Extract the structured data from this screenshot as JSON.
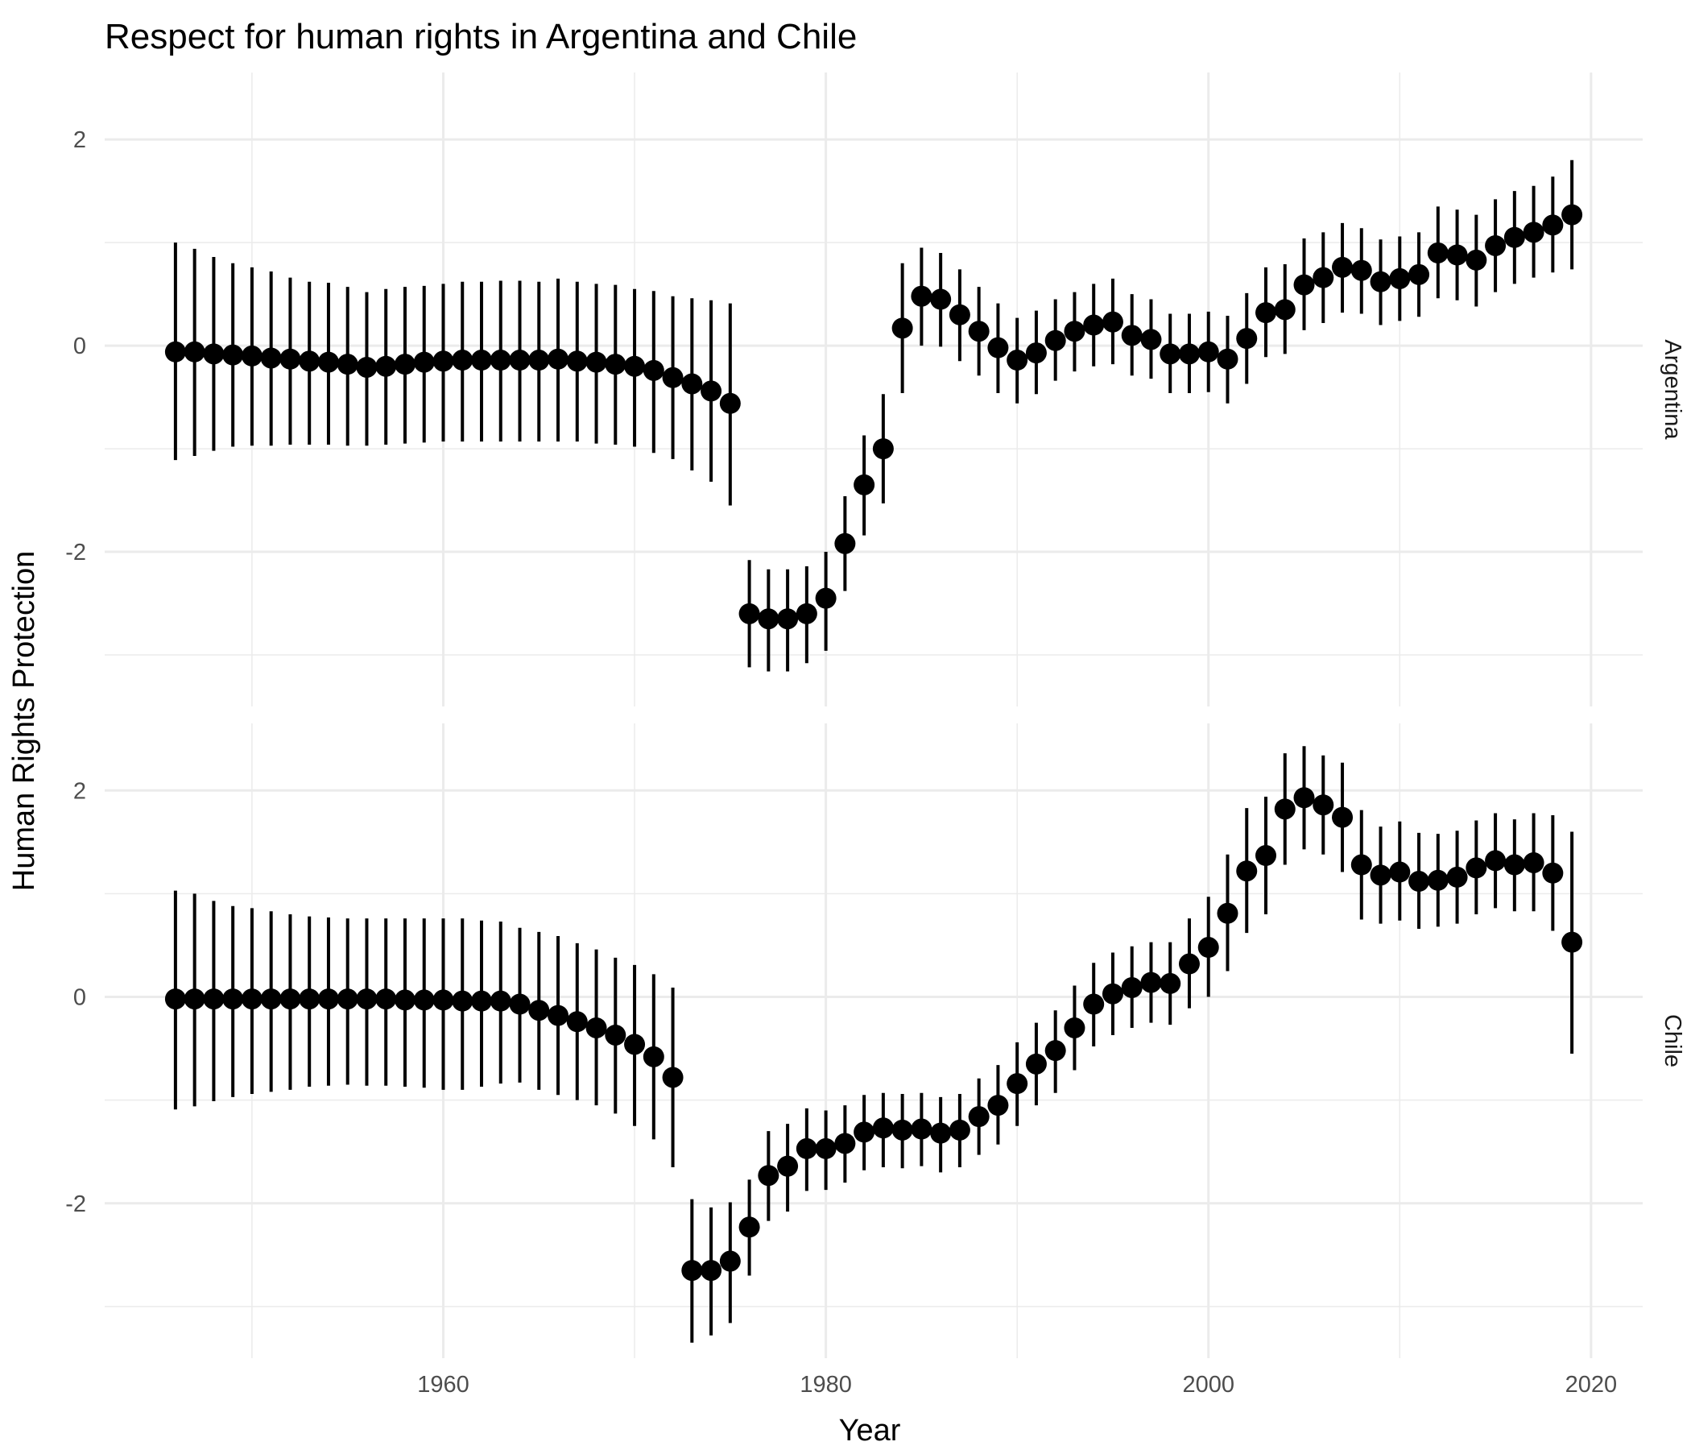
{
  "chart_data": {
    "type": "scatter",
    "title": "Respect for human rights in Argentina and Chile",
    "xlabel": "Year",
    "ylabel": "Human Rights Protection",
    "xlim": [
      1942.3,
      2022.7
    ],
    "ylim": [
      -3.5,
      2.65
    ],
    "x_ticks": [
      1960,
      1980,
      2000,
      2020
    ],
    "y_ticks": [
      -2,
      0,
      2
    ],
    "grid": true,
    "facets": [
      {
        "name": "Argentina",
        "points": [
          {
            "x": 1946,
            "y": -0.06,
            "lo": -1.11,
            "hi": 1.0
          },
          {
            "x": 1947,
            "y": -0.06,
            "lo": -1.07,
            "hi": 0.94
          },
          {
            "x": 1948,
            "y": -0.08,
            "lo": -1.02,
            "hi": 0.86
          },
          {
            "x": 1949,
            "y": -0.09,
            "lo": -0.98,
            "hi": 0.8
          },
          {
            "x": 1950,
            "y": -0.1,
            "lo": -0.97,
            "hi": 0.76
          },
          {
            "x": 1951,
            "y": -0.12,
            "lo": -0.97,
            "hi": 0.72
          },
          {
            "x": 1952,
            "y": -0.13,
            "lo": -0.96,
            "hi": 0.66
          },
          {
            "x": 1953,
            "y": -0.15,
            "lo": -0.96,
            "hi": 0.62
          },
          {
            "x": 1954,
            "y": -0.16,
            "lo": -0.96,
            "hi": 0.61
          },
          {
            "x": 1955,
            "y": -0.18,
            "lo": -0.97,
            "hi": 0.57
          },
          {
            "x": 1956,
            "y": -0.21,
            "lo": -0.97,
            "hi": 0.52
          },
          {
            "x": 1957,
            "y": -0.2,
            "lo": -0.96,
            "hi": 0.55
          },
          {
            "x": 1958,
            "y": -0.18,
            "lo": -0.95,
            "hi": 0.57
          },
          {
            "x": 1959,
            "y": -0.16,
            "lo": -0.94,
            "hi": 0.58
          },
          {
            "x": 1960,
            "y": -0.15,
            "lo": -0.93,
            "hi": 0.6
          },
          {
            "x": 1961,
            "y": -0.14,
            "lo": -0.93,
            "hi": 0.62
          },
          {
            "x": 1962,
            "y": -0.14,
            "lo": -0.93,
            "hi": 0.62
          },
          {
            "x": 1963,
            "y": -0.14,
            "lo": -0.93,
            "hi": 0.63
          },
          {
            "x": 1964,
            "y": -0.14,
            "lo": -0.93,
            "hi": 0.63
          },
          {
            "x": 1965,
            "y": -0.14,
            "lo": -0.93,
            "hi": 0.62
          },
          {
            "x": 1966,
            "y": -0.13,
            "lo": -0.93,
            "hi": 0.65
          },
          {
            "x": 1967,
            "y": -0.15,
            "lo": -0.93,
            "hi": 0.62
          },
          {
            "x": 1968,
            "y": -0.16,
            "lo": -0.95,
            "hi": 0.6
          },
          {
            "x": 1969,
            "y": -0.18,
            "lo": -0.96,
            "hi": 0.59
          },
          {
            "x": 1970,
            "y": -0.2,
            "lo": -0.98,
            "hi": 0.55
          },
          {
            "x": 1971,
            "y": -0.24,
            "lo": -1.04,
            "hi": 0.53
          },
          {
            "x": 1972,
            "y": -0.31,
            "lo": -1.1,
            "hi": 0.48
          },
          {
            "x": 1973,
            "y": -0.37,
            "lo": -1.21,
            "hi": 0.46
          },
          {
            "x": 1974,
            "y": -0.44,
            "lo": -1.32,
            "hi": 0.44
          },
          {
            "x": 1975,
            "y": -0.56,
            "lo": -1.55,
            "hi": 0.41
          },
          {
            "x": 1976,
            "y": -2.6,
            "lo": -3.12,
            "hi": -2.08
          },
          {
            "x": 1977,
            "y": -2.65,
            "lo": -3.16,
            "hi": -2.17
          },
          {
            "x": 1978,
            "y": -2.65,
            "lo": -3.16,
            "hi": -2.17
          },
          {
            "x": 1979,
            "y": -2.6,
            "lo": -3.08,
            "hi": -2.14
          },
          {
            "x": 1980,
            "y": -2.45,
            "lo": -2.96,
            "hi": -2.0
          },
          {
            "x": 1981,
            "y": -1.92,
            "lo": -2.38,
            "hi": -1.46
          },
          {
            "x": 1982,
            "y": -1.35,
            "lo": -1.84,
            "hi": -0.87
          },
          {
            "x": 1983,
            "y": -1.0,
            "lo": -1.53,
            "hi": -0.47
          },
          {
            "x": 1984,
            "y": 0.17,
            "lo": -0.46,
            "hi": 0.8
          },
          {
            "x": 1985,
            "y": 0.48,
            "lo": 0.0,
            "hi": 0.95
          },
          {
            "x": 1986,
            "y": 0.45,
            "lo": -0.01,
            "hi": 0.9
          },
          {
            "x": 1987,
            "y": 0.3,
            "lo": -0.15,
            "hi": 0.74
          },
          {
            "x": 1988,
            "y": 0.14,
            "lo": -0.29,
            "hi": 0.57
          },
          {
            "x": 1989,
            "y": -0.02,
            "lo": -0.46,
            "hi": 0.41
          },
          {
            "x": 1990,
            "y": -0.14,
            "lo": -0.56,
            "hi": 0.27
          },
          {
            "x": 1991,
            "y": -0.07,
            "lo": -0.47,
            "hi": 0.34
          },
          {
            "x": 1992,
            "y": 0.05,
            "lo": -0.34,
            "hi": 0.45
          },
          {
            "x": 1993,
            "y": 0.14,
            "lo": -0.25,
            "hi": 0.52
          },
          {
            "x": 1994,
            "y": 0.2,
            "lo": -0.2,
            "hi": 0.6
          },
          {
            "x": 1995,
            "y": 0.23,
            "lo": -0.18,
            "hi": 0.65
          },
          {
            "x": 1996,
            "y": 0.1,
            "lo": -0.29,
            "hi": 0.5
          },
          {
            "x": 1997,
            "y": 0.06,
            "lo": -0.32,
            "hi": 0.45
          },
          {
            "x": 1998,
            "y": -0.08,
            "lo": -0.46,
            "hi": 0.31
          },
          {
            "x": 1999,
            "y": -0.08,
            "lo": -0.46,
            "hi": 0.31
          },
          {
            "x": 2000,
            "y": -0.06,
            "lo": -0.45,
            "hi": 0.33
          },
          {
            "x": 2001,
            "y": -0.13,
            "lo": -0.56,
            "hi": 0.29
          },
          {
            "x": 2002,
            "y": 0.07,
            "lo": -0.37,
            "hi": 0.51
          },
          {
            "x": 2003,
            "y": 0.32,
            "lo": -0.11,
            "hi": 0.76
          },
          {
            "x": 2004,
            "y": 0.35,
            "lo": -0.08,
            "hi": 0.79
          },
          {
            "x": 2005,
            "y": 0.59,
            "lo": 0.15,
            "hi": 1.04
          },
          {
            "x": 2006,
            "y": 0.66,
            "lo": 0.22,
            "hi": 1.1
          },
          {
            "x": 2007,
            "y": 0.76,
            "lo": 0.32,
            "hi": 1.19
          },
          {
            "x": 2008,
            "y": 0.73,
            "lo": 0.31,
            "hi": 1.14
          },
          {
            "x": 2009,
            "y": 0.62,
            "lo": 0.2,
            "hi": 1.03
          },
          {
            "x": 2010,
            "y": 0.65,
            "lo": 0.24,
            "hi": 1.06
          },
          {
            "x": 2011,
            "y": 0.69,
            "lo": 0.28,
            "hi": 1.1
          },
          {
            "x": 2012,
            "y": 0.9,
            "lo": 0.46,
            "hi": 1.35
          },
          {
            "x": 2013,
            "y": 0.88,
            "lo": 0.44,
            "hi": 1.32
          },
          {
            "x": 2014,
            "y": 0.83,
            "lo": 0.38,
            "hi": 1.27
          },
          {
            "x": 2015,
            "y": 0.97,
            "lo": 0.52,
            "hi": 1.42
          },
          {
            "x": 2016,
            "y": 1.05,
            "lo": 0.6,
            "hi": 1.5
          },
          {
            "x": 2017,
            "y": 1.1,
            "lo": 0.66,
            "hi": 1.55
          },
          {
            "x": 2018,
            "y": 1.17,
            "lo": 0.71,
            "hi": 1.64
          },
          {
            "x": 2019,
            "y": 1.27,
            "lo": 0.74,
            "hi": 1.8
          }
        ]
      },
      {
        "name": "Chile",
        "points": [
          {
            "x": 1946,
            "y": -0.02,
            "lo": -1.09,
            "hi": 1.03
          },
          {
            "x": 1947,
            "y": -0.02,
            "lo": -1.06,
            "hi": 1.0
          },
          {
            "x": 1948,
            "y": -0.02,
            "lo": -1.01,
            "hi": 0.93
          },
          {
            "x": 1949,
            "y": -0.02,
            "lo": -0.97,
            "hi": 0.88
          },
          {
            "x": 1950,
            "y": -0.02,
            "lo": -0.94,
            "hi": 0.86
          },
          {
            "x": 1951,
            "y": -0.02,
            "lo": -0.92,
            "hi": 0.83
          },
          {
            "x": 1952,
            "y": -0.02,
            "lo": -0.9,
            "hi": 0.8
          },
          {
            "x": 1953,
            "y": -0.02,
            "lo": -0.87,
            "hi": 0.78
          },
          {
            "x": 1954,
            "y": -0.02,
            "lo": -0.86,
            "hi": 0.77
          },
          {
            "x": 1955,
            "y": -0.02,
            "lo": -0.85,
            "hi": 0.76
          },
          {
            "x": 1956,
            "y": -0.02,
            "lo": -0.86,
            "hi": 0.76
          },
          {
            "x": 1957,
            "y": -0.02,
            "lo": -0.86,
            "hi": 0.76
          },
          {
            "x": 1958,
            "y": -0.03,
            "lo": -0.87,
            "hi": 0.76
          },
          {
            "x": 1959,
            "y": -0.03,
            "lo": -0.88,
            "hi": 0.76
          },
          {
            "x": 1960,
            "y": -0.03,
            "lo": -0.9,
            "hi": 0.76
          },
          {
            "x": 1961,
            "y": -0.04,
            "lo": -0.9,
            "hi": 0.76
          },
          {
            "x": 1962,
            "y": -0.04,
            "lo": -0.87,
            "hi": 0.74
          },
          {
            "x": 1963,
            "y": -0.04,
            "lo": -0.84,
            "hi": 0.73
          },
          {
            "x": 1964,
            "y": -0.07,
            "lo": -0.83,
            "hi": 0.67
          },
          {
            "x": 1965,
            "y": -0.13,
            "lo": -0.9,
            "hi": 0.63
          },
          {
            "x": 1966,
            "y": -0.18,
            "lo": -0.95,
            "hi": 0.59
          },
          {
            "x": 1967,
            "y": -0.24,
            "lo": -1.0,
            "hi": 0.52
          },
          {
            "x": 1968,
            "y": -0.3,
            "lo": -1.05,
            "hi": 0.46
          },
          {
            "x": 1969,
            "y": -0.37,
            "lo": -1.13,
            "hi": 0.38
          },
          {
            "x": 1970,
            "y": -0.46,
            "lo": -1.25,
            "hi": 0.31
          },
          {
            "x": 1971,
            "y": -0.58,
            "lo": -1.38,
            "hi": 0.22
          },
          {
            "x": 1972,
            "y": -0.78,
            "lo": -1.65,
            "hi": 0.09
          },
          {
            "x": 1973,
            "y": -2.65,
            "lo": -3.35,
            "hi": -1.96
          },
          {
            "x": 1974,
            "y": -2.65,
            "lo": -3.28,
            "hi": -2.04
          },
          {
            "x": 1975,
            "y": -2.56,
            "lo": -3.16,
            "hi": -1.99
          },
          {
            "x": 1976,
            "y": -2.23,
            "lo": -2.7,
            "hi": -1.77
          },
          {
            "x": 1977,
            "y": -1.73,
            "lo": -2.17,
            "hi": -1.3
          },
          {
            "x": 1978,
            "y": -1.64,
            "lo": -2.08,
            "hi": -1.23
          },
          {
            "x": 1979,
            "y": -1.47,
            "lo": -1.88,
            "hi": -1.08
          },
          {
            "x": 1980,
            "y": -1.47,
            "lo": -1.87,
            "hi": -1.1
          },
          {
            "x": 1981,
            "y": -1.42,
            "lo": -1.8,
            "hi": -1.05
          },
          {
            "x": 1982,
            "y": -1.31,
            "lo": -1.68,
            "hi": -0.95
          },
          {
            "x": 1983,
            "y": -1.27,
            "lo": -1.65,
            "hi": -0.93
          },
          {
            "x": 1984,
            "y": -1.29,
            "lo": -1.66,
            "hi": -0.94
          },
          {
            "x": 1985,
            "y": -1.28,
            "lo": -1.64,
            "hi": -0.93
          },
          {
            "x": 1986,
            "y": -1.32,
            "lo": -1.7,
            "hi": -0.97
          },
          {
            "x": 1987,
            "y": -1.29,
            "lo": -1.65,
            "hi": -0.94
          },
          {
            "x": 1988,
            "y": -1.16,
            "lo": -1.53,
            "hi": -0.79
          },
          {
            "x": 1989,
            "y": -1.05,
            "lo": -1.43,
            "hi": -0.66
          },
          {
            "x": 1990,
            "y": -0.84,
            "lo": -1.25,
            "hi": -0.44
          },
          {
            "x": 1991,
            "y": -0.65,
            "lo": -1.05,
            "hi": -0.25
          },
          {
            "x": 1992,
            "y": -0.52,
            "lo": -0.93,
            "hi": -0.13
          },
          {
            "x": 1993,
            "y": -0.3,
            "lo": -0.71,
            "hi": 0.11
          },
          {
            "x": 1994,
            "y": -0.07,
            "lo": -0.48,
            "hi": 0.33
          },
          {
            "x": 1995,
            "y": 0.03,
            "lo": -0.37,
            "hi": 0.43
          },
          {
            "x": 1996,
            "y": 0.09,
            "lo": -0.3,
            "hi": 0.49
          },
          {
            "x": 1997,
            "y": 0.14,
            "lo": -0.25,
            "hi": 0.53
          },
          {
            "x": 1998,
            "y": 0.13,
            "lo": -0.27,
            "hi": 0.53
          },
          {
            "x": 1999,
            "y": 0.32,
            "lo": -0.11,
            "hi": 0.76
          },
          {
            "x": 2000,
            "y": 0.48,
            "lo": 0.0,
            "hi": 0.97
          },
          {
            "x": 2001,
            "y": 0.81,
            "lo": 0.25,
            "hi": 1.38
          },
          {
            "x": 2002,
            "y": 1.22,
            "lo": 0.62,
            "hi": 1.83
          },
          {
            "x": 2003,
            "y": 1.37,
            "lo": 0.8,
            "hi": 1.94
          },
          {
            "x": 2004,
            "y": 1.82,
            "lo": 1.28,
            "hi": 2.36
          },
          {
            "x": 2005,
            "y": 1.93,
            "lo": 1.43,
            "hi": 2.43
          },
          {
            "x": 2006,
            "y": 1.86,
            "lo": 1.38,
            "hi": 2.34
          },
          {
            "x": 2007,
            "y": 1.74,
            "lo": 1.21,
            "hi": 2.27
          },
          {
            "x": 2008,
            "y": 1.28,
            "lo": 0.75,
            "hi": 1.81
          },
          {
            "x": 2009,
            "y": 1.18,
            "lo": 0.71,
            "hi": 1.65
          },
          {
            "x": 2010,
            "y": 1.21,
            "lo": 0.74,
            "hi": 1.7
          },
          {
            "x": 2011,
            "y": 1.12,
            "lo": 0.66,
            "hi": 1.59
          },
          {
            "x": 2012,
            "y": 1.13,
            "lo": 0.68,
            "hi": 1.58
          },
          {
            "x": 2013,
            "y": 1.16,
            "lo": 0.71,
            "hi": 1.61
          },
          {
            "x": 2014,
            "y": 1.25,
            "lo": 0.8,
            "hi": 1.71
          },
          {
            "x": 2015,
            "y": 1.32,
            "lo": 0.86,
            "hi": 1.78
          },
          {
            "x": 2016,
            "y": 1.28,
            "lo": 0.83,
            "hi": 1.72
          },
          {
            "x": 2017,
            "y": 1.3,
            "lo": 0.83,
            "hi": 1.78
          },
          {
            "x": 2018,
            "y": 1.2,
            "lo": 0.64,
            "hi": 1.76
          },
          {
            "x": 2019,
            "y": 0.53,
            "lo": -0.55,
            "hi": 1.6
          }
        ]
      }
    ]
  }
}
